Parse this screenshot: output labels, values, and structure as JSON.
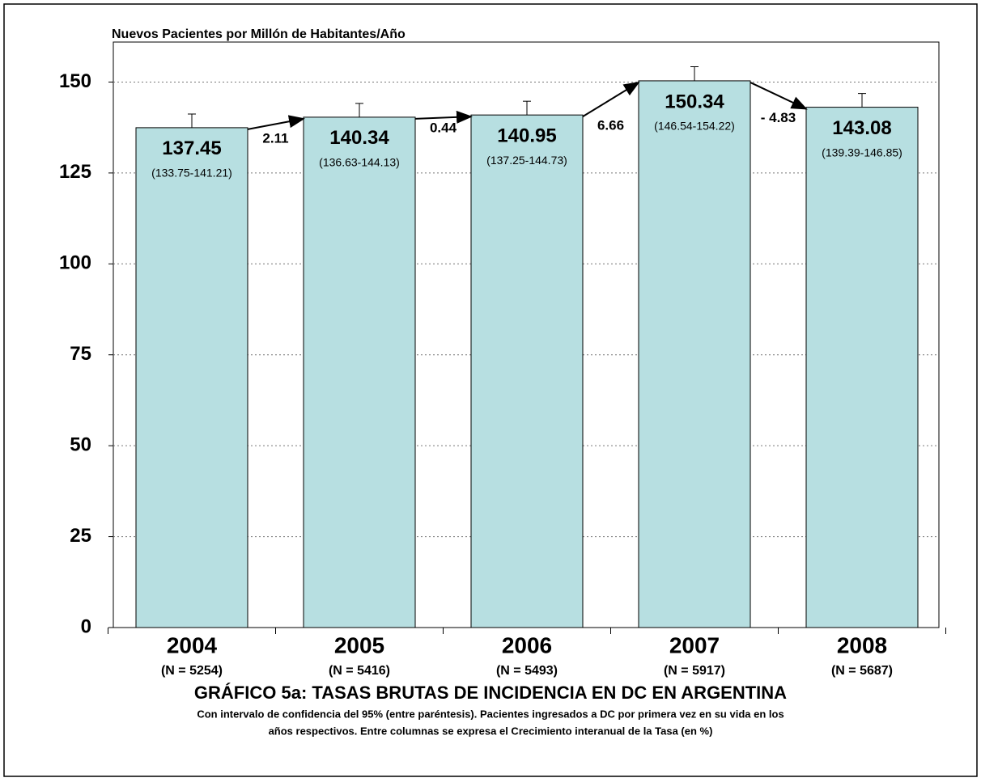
{
  "chart_data": {
    "type": "bar",
    "y_axis_label": "Nuevos Pacientes por Millón de Habitantes/Año",
    "title": "GRÁFICO 5a:  TASAS  BRUTAS  DE INCIDENCIA EN DC EN ARGENTINA",
    "subtitle": [
      "Con intervalo de confidencia del 95% (entre paréntesis). Pacientes ingresados a DC por primera vez en su vida en los",
      "años respectivos. Entre columnas se expresa el Crecimiento interanual de la Tasa (en %)"
    ],
    "categories": [
      "2004",
      "2005",
      "2006",
      "2007",
      "2008"
    ],
    "n_labels": [
      "(N = 5254)",
      "(N = 5416)",
      "(N = 5493)",
      "(N = 5917)",
      "(N = 5687)"
    ],
    "series": [
      {
        "name": "Tasa",
        "color": "#b7dfe1",
        "values": [
          137.45,
          140.34,
          140.95,
          150.34,
          143.08
        ]
      }
    ],
    "ci_high": [
      141.21,
      144.13,
      144.73,
      154.22,
      146.85
    ],
    "ci_labels": [
      "(133.75-141.21)",
      "(136.63-144.13)",
      "(137.25-144.73)",
      "(146.54-154.22)",
      "(139.39-146.85)"
    ],
    "growth": [
      2.11,
      0.44,
      6.66,
      -4.83
    ],
    "growth_labels": [
      "2.11",
      "0.44",
      "6.66",
      "- 4.83"
    ],
    "ylim": [
      0,
      161
    ],
    "yticks": [
      0,
      25,
      50,
      75,
      100,
      125,
      150
    ],
    "grid": true
  }
}
